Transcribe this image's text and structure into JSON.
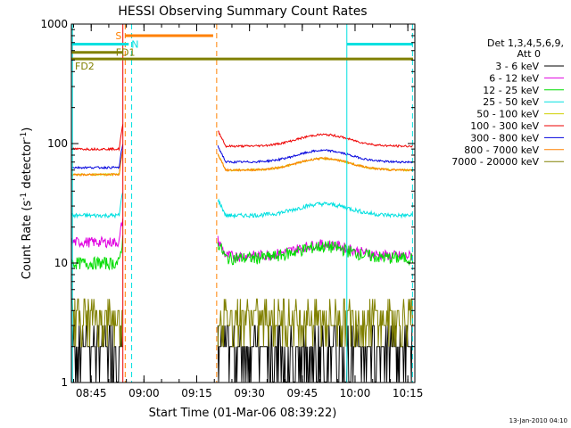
{
  "chart_data": {
    "type": "line",
    "title": "HESSI Observing Summary Count Rates",
    "xlabel": "Start Time (01-Mar-06 08:39:22)",
    "ylabel_main": "Count Rate (s",
    "ylabel_sup1": "-1",
    "ylabel_mid": " detector",
    "ylabel_sup2": "-1",
    "ylabel_end": ")",
    "y_scale": "log",
    "ylim": [
      1,
      1000
    ],
    "xlim": [
      "08:39:22",
      "10:17:00"
    ],
    "y_ticks": [
      "1",
      "10",
      "100",
      "1000"
    ],
    "x_ticks": [
      "08:45",
      "09:00",
      "09:15",
      "09:30",
      "09:45",
      "10:00",
      "10:15"
    ],
    "legend_title": "Det 1,3,4,5,6,9,",
    "legend_att": "Att 0",
    "legend_placement": "right",
    "footer_date": "13-Jan-2010 04:10",
    "series": [
      {
        "name": "3 - 6 keV",
        "color": "#000000",
        "level": 2.3,
        "noise": 0.45,
        "pre": 2.0,
        "post": 1.5
      },
      {
        "name": "6 - 12 keV",
        "color": "#e000e0",
        "level": 11.5,
        "noise": 0.1,
        "pre": 15.0,
        "post": 11.5
      },
      {
        "name": "12 - 25 keV",
        "color": "#00dd00",
        "level": 11.0,
        "noise": 0.12,
        "pre": 10.0,
        "post": 11.0
      },
      {
        "name": "25 - 50 keV",
        "color": "#00e0e0",
        "level": 25.0,
        "noise": 0.04,
        "pre": 25.0,
        "post": 25.0
      },
      {
        "name": "50 - 100 keV",
        "color": "#d0d000",
        "level": 63.0,
        "noise": 0.02,
        "pre": 55.0,
        "post": 60.0
      },
      {
        "name": "100 - 300 keV",
        "color": "#ee0000",
        "level": 100.0,
        "noise": 0.02,
        "pre": 90.0,
        "post": 95.0
      },
      {
        "name": "300 - 800 keV",
        "color": "#0000dd",
        "level": 75.0,
        "noise": 0.02,
        "pre": 63.0,
        "post": 70.0
      },
      {
        "name": "800 - 7000 keV",
        "color": "#ff8000",
        "level": 65.0,
        "noise": 0.02,
        "pre": 55.0,
        "post": 60.0
      },
      {
        "name": "7000 - 20000 keV",
        "color": "#808000",
        "level": 4.0,
        "noise": 0.3,
        "pre": 3.5,
        "post": 4.0
      }
    ],
    "segments": [
      {
        "start": "08:39:22",
        "end": "08:54:00"
      },
      {
        "start": "09:21:00",
        "end": "10:16:30"
      }
    ],
    "flags": [
      {
        "label": "S",
        "color": "#ff8000",
        "start": "08:54:40",
        "end": "09:19:40",
        "y": 800
      },
      {
        "label": "N",
        "color": "#00e0e0",
        "start": "08:39:22",
        "end": "08:55:40",
        "y": 680
      },
      {
        "label": "",
        "color": "#00e0e0",
        "start": "09:57:40",
        "end": "10:16:30",
        "y": 680
      },
      {
        "label": "FD1",
        "color": "#808000",
        "start": "08:39:22",
        "end": "08:54:00",
        "y": 580
      },
      {
        "label": "FD2",
        "color": "#808000",
        "start": "08:39:22",
        "end": "10:16:30",
        "y": 510
      }
    ],
    "vlines": [
      {
        "time": "08:54:00",
        "color": "#ee0000",
        "style": "solid"
      },
      {
        "time": "08:54:40",
        "color": "#ff8000",
        "style": "dashed"
      },
      {
        "time": "08:56:30",
        "color": "#00e0e0",
        "style": "dashed"
      },
      {
        "time": "09:20:40",
        "color": "#ff8000",
        "style": "dashed"
      },
      {
        "time": "09:57:40",
        "color": "#00e0e0",
        "style": "solid"
      },
      {
        "time": "10:16:20",
        "color": "#00e0e0",
        "style": "dashed"
      },
      {
        "time": "08:39:40",
        "color": "#00e0e0",
        "style": "solid"
      }
    ]
  }
}
